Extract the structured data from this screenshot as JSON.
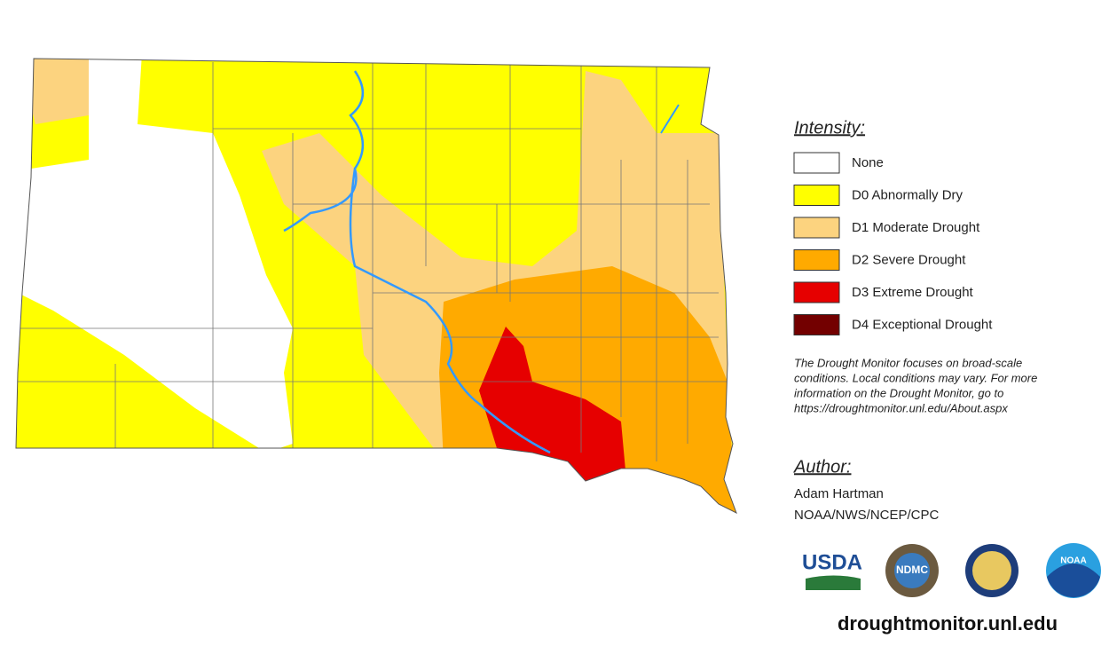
{
  "legend": {
    "title": "Intensity:",
    "items": [
      {
        "label": "None",
        "color": "#ffffff"
      },
      {
        "label": "D0 Abnormally Dry",
        "color": "#ffff00"
      },
      {
        "label": "D1 Moderate Drought",
        "color": "#fcd37f"
      },
      {
        "label": "D2 Severe Drought",
        "color": "#ffaa00"
      },
      {
        "label": "D3 Extreme Drought",
        "color": "#e60000"
      },
      {
        "label": "D4 Exceptional Drought",
        "color": "#730000"
      }
    ]
  },
  "note": [
    "The Drought Monitor focuses on broad-scale",
    "conditions. Local conditions may vary. For more",
    "information on the Drought Monitor, go to",
    "https://droughtmonitor.unl.edu/About.aspx"
  ],
  "author": {
    "heading": "Author:",
    "name": "Adam Hartman",
    "org": "NOAA/NWS/NCEP/CPC"
  },
  "logos": [
    "USDA",
    "NDMC",
    "NOAA"
  ],
  "footer": "droughtmonitor.unl.edu"
}
